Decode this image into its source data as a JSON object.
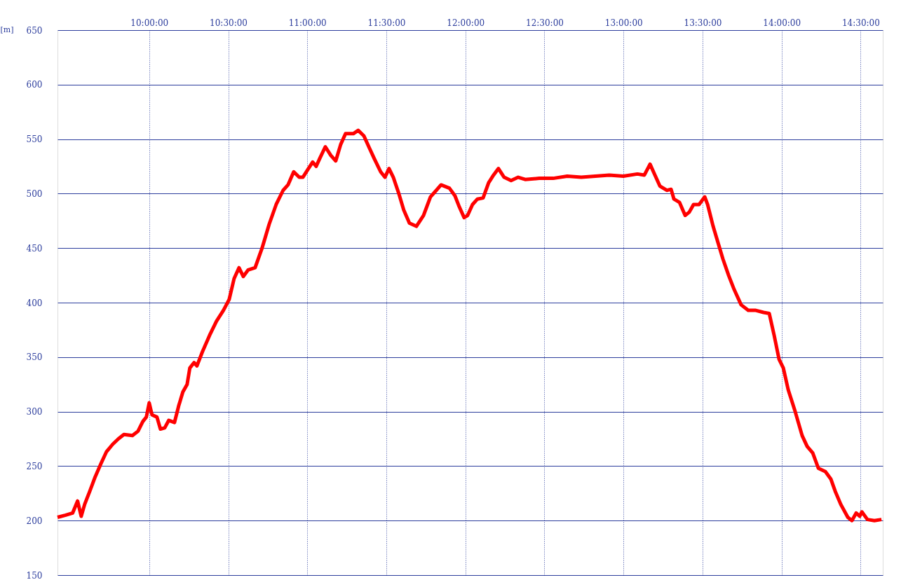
{
  "chart_data": {
    "type": "line",
    "ylabel": "[m]",
    "xlim": [
      9.42,
      14.64
    ],
    "ylim": [
      150,
      650
    ],
    "xticks": [
      {
        "value": 10,
        "label": "10:00:00"
      },
      {
        "value": 10.5,
        "label": "10:30:00"
      },
      {
        "value": 11,
        "label": "11:00:00"
      },
      {
        "value": 11.5,
        "label": "11:30:00"
      },
      {
        "value": 12,
        "label": "12:00:00"
      },
      {
        "value": 12.5,
        "label": "12:30:00"
      },
      {
        "value": 13,
        "label": "13:00:00"
      },
      {
        "value": 13.5,
        "label": "13:30:00"
      },
      {
        "value": 14,
        "label": "14:00:00"
      },
      {
        "value": 14.5,
        "label": "14:30:00"
      }
    ],
    "yticks": [
      150,
      200,
      250,
      300,
      350,
      400,
      450,
      500,
      550,
      600,
      650
    ],
    "grid": true,
    "line_style": "solid",
    "marker": "none",
    "series": [
      {
        "color": "#ff0000",
        "x": [
          9.42,
          9.472,
          9.516,
          9.547,
          9.57,
          9.592,
          9.627,
          9.658,
          9.694,
          9.729,
          9.769,
          9.805,
          9.84,
          9.894,
          9.929,
          9.96,
          9.982,
          10.0,
          10.018,
          10.049,
          10.071,
          10.098,
          10.124,
          10.16,
          10.186,
          10.213,
          10.24,
          10.257,
          10.284,
          10.302,
          10.337,
          10.382,
          10.426,
          10.47,
          10.506,
          10.537,
          10.568,
          10.595,
          10.626,
          10.67,
          10.714,
          10.759,
          10.803,
          10.847,
          10.878,
          10.914,
          10.949,
          10.972,
          11.003,
          11.034,
          11.056,
          11.078,
          11.114,
          11.149,
          11.18,
          11.211,
          11.242,
          11.291,
          11.322,
          11.358,
          11.389,
          11.424,
          11.464,
          11.491,
          11.517,
          11.544,
          11.579,
          11.61,
          11.646,
          11.69,
          11.735,
          11.779,
          11.81,
          11.846,
          11.899,
          11.934,
          11.961,
          11.992,
          12.014,
          12.045,
          12.076,
          12.112,
          12.147,
          12.178,
          12.209,
          12.245,
          12.289,
          12.334,
          12.378,
          12.467,
          12.555,
          12.644,
          12.733,
          12.822,
          12.91,
          12.999,
          13.088,
          13.132,
          13.168,
          13.199,
          13.23,
          13.274,
          13.301,
          13.319,
          13.354,
          13.39,
          13.416,
          13.443,
          13.478,
          13.514,
          13.532,
          13.567,
          13.598,
          13.629,
          13.665,
          13.7,
          13.744,
          13.789,
          13.833,
          13.886,
          13.922,
          13.953,
          13.984,
          14.011,
          14.042,
          14.086,
          14.13,
          14.162,
          14.197,
          14.233,
          14.277,
          14.312,
          14.339,
          14.374,
          14.419,
          14.445,
          14.472,
          14.494,
          14.508,
          14.543,
          14.587,
          14.632
        ],
        "values": [
          203,
          205,
          207,
          218,
          204,
          215,
          228,
          240,
          252,
          263,
          270,
          275,
          279,
          278,
          282,
          291,
          295,
          308,
          297,
          295,
          284,
          285,
          292,
          290,
          305,
          318,
          325,
          340,
          345,
          342,
          355,
          370,
          383,
          393,
          403,
          422,
          432,
          424,
          430,
          432,
          450,
          472,
          490,
          503,
          508,
          520,
          515,
          515,
          522,
          529,
          525,
          532,
          543,
          535,
          530,
          545,
          555,
          555,
          558,
          553,
          543,
          532,
          520,
          515,
          523,
          515,
          500,
          485,
          473,
          470,
          480,
          497,
          502,
          508,
          505,
          498,
          488,
          478,
          480,
          490,
          495,
          496,
          510,
          517,
          523,
          515,
          512,
          515,
          513,
          514,
          514,
          516,
          515,
          516,
          517,
          516,
          518,
          517,
          527,
          517,
          507,
          503,
          504,
          495,
          492,
          480,
          483,
          490,
          490,
          497,
          490,
          470,
          455,
          440,
          425,
          412,
          398,
          393,
          393,
          391,
          390,
          370,
          348,
          340,
          320,
          300,
          278,
          268,
          262,
          248,
          245,
          238,
          227,
          215,
          203,
          200,
          207,
          204,
          208,
          201,
          200,
          201
        ]
      }
    ]
  }
}
